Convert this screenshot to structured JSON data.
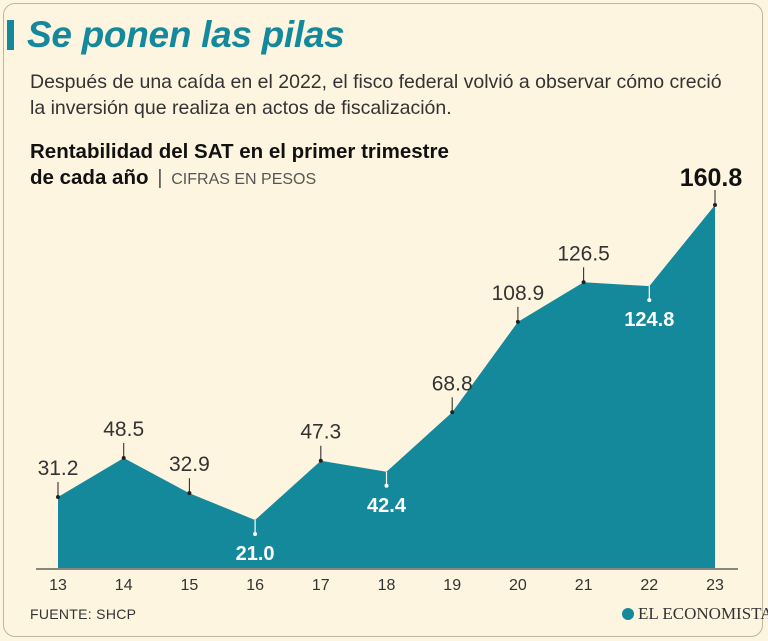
{
  "header": {
    "title": "Se ponen las pilas",
    "subtitle": "Después de una caída en el 2022, el fisco federal volvió a observar cómo creció la inversión que realiza en actos de fiscalización."
  },
  "chart_title": {
    "line1": "Rentabilidad del SAT en el primer trimestre",
    "line2": "de cada año",
    "unit": "CIFRAS EN PESOS"
  },
  "chart_data": {
    "type": "area",
    "categories": [
      "13",
      "14",
      "15",
      "16",
      "17",
      "18",
      "19",
      "20",
      "21",
      "22",
      "23"
    ],
    "values": [
      31.2,
      48.5,
      32.9,
      21.0,
      47.3,
      42.4,
      68.8,
      108.9,
      126.5,
      124.8,
      160.8
    ],
    "value_labels": [
      "31.2",
      "48.5",
      "32.9",
      "21.0",
      "47.3",
      "42.4",
      "68.8",
      "108.9",
      "126.5",
      "124.8",
      "160.8"
    ],
    "label_placement": [
      "above",
      "above",
      "above",
      "below",
      "above",
      "below",
      "above",
      "above",
      "above",
      "below",
      "above"
    ],
    "title": "Rentabilidad del SAT en el primer trimestre de cada año",
    "xlabel": "",
    "ylabel": "Cifras en pesos",
    "grid": false,
    "fill_color": "#14899c",
    "label_color": "#333333",
    "inside_label_color": "#ffffff"
  },
  "footer": {
    "source": "FUENTE: SHCP",
    "brand": "EL ECONOMISTA"
  }
}
